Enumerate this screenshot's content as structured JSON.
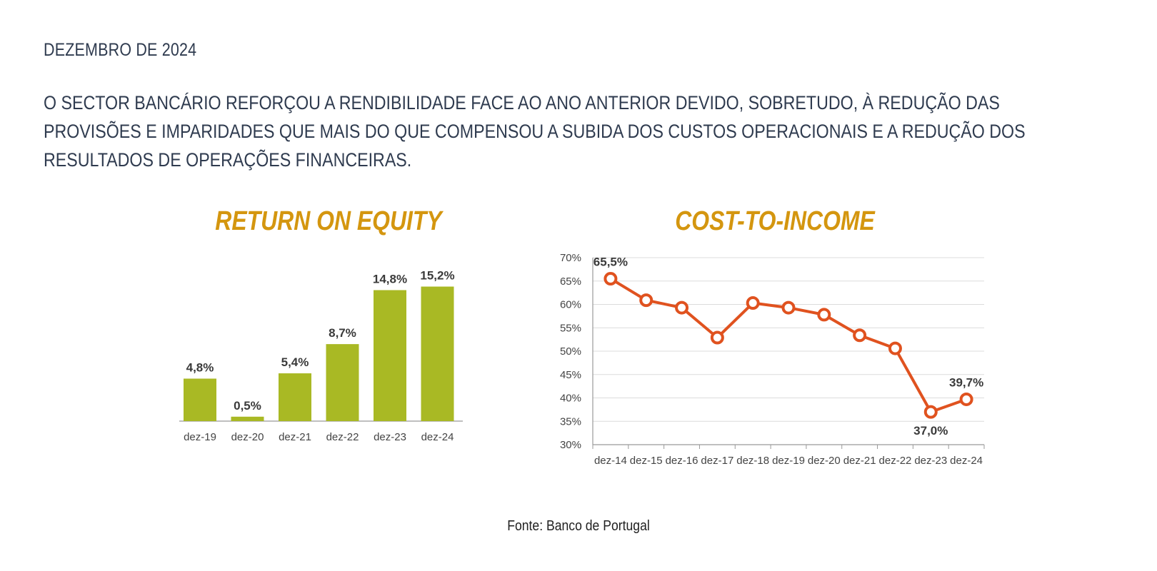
{
  "header": {
    "date": "DEZEMBRO DE 2024",
    "headline_lines": [
      "O SECTOR BANCÁRIO REFORÇOU A RENDIBILIDADE FACE AO ANO ANTERIOR DEVIDO, SOBRETUDO,  À REDUÇÃO DAS",
      "PROVISÕES E IMPARIDADES QUE MAIS DO QUE COMPENSOU A SUBIDA DOS CUSTOS OPERACIONAIS E A REDUÇÃO DOS",
      "RESULTADOS DE OPERAÇÕES FINANCEIRAS."
    ]
  },
  "source": "Fonte: Banco de Portugal",
  "colors": {
    "bar": "#a9b924",
    "line": "#e0521f",
    "title": "#d4960f",
    "text": "#2f3b4f"
  },
  "chart_data": [
    {
      "type": "bar",
      "title": "RETURN ON EQUITY",
      "categories": [
        "dez-19",
        "dez-20",
        "dez-21",
        "dez-22",
        "dez-23",
        "dez-24"
      ],
      "values": [
        4.8,
        0.5,
        5.4,
        8.7,
        14.8,
        15.2
      ],
      "data_labels": [
        "4,8%",
        "0,5%",
        "5,4%",
        "8,7%",
        "14,8%",
        "15,2%"
      ],
      "xlabel": "",
      "ylabel": "",
      "grid": false
    },
    {
      "type": "line",
      "title": "COST-TO-INCOME",
      "categories": [
        "dez-14",
        "dez-15",
        "dez-16",
        "dez-17",
        "dez-18",
        "dez-19",
        "dez-20",
        "dez-21",
        "dez-22",
        "dez-23",
        "dez-24"
      ],
      "values": [
        65.5,
        60.9,
        59.3,
        52.9,
        60.3,
        59.3,
        57.8,
        53.4,
        50.6,
        37.0,
        39.7
      ],
      "data_labels": [
        {
          "index": 0,
          "text": "65,5%"
        },
        {
          "index": 9,
          "text": "37,0%"
        },
        {
          "index": 10,
          "text": "39,7%"
        }
      ],
      "yticks": [
        "30%",
        "35%",
        "40%",
        "45%",
        "50%",
        "55%",
        "60%",
        "65%",
        "70%"
      ],
      "ylim": [
        30,
        70
      ],
      "xlabel": "",
      "ylabel": "",
      "grid": true
    }
  ]
}
